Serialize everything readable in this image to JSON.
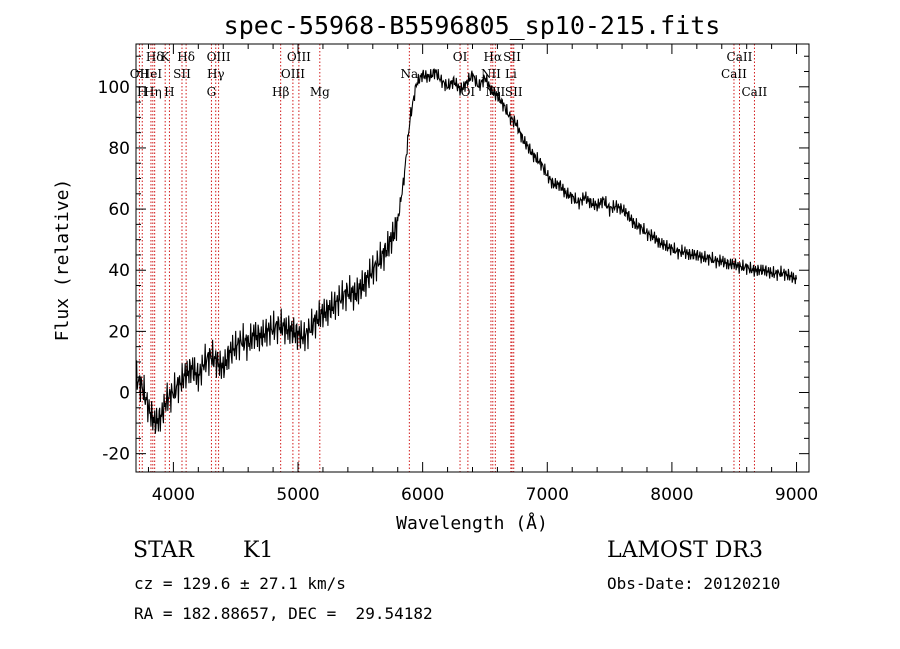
{
  "chart_data": {
    "type": "line",
    "title": "spec-55968-B5596805_sp10-215.fits",
    "xlabel": "Wavelength (Å)",
    "ylabel": "Flux (relative)",
    "xlim": [
      3700,
      9100
    ],
    "ylim": [
      -26,
      114
    ],
    "grid": false,
    "x_ticks": [
      4000,
      5000,
      6000,
      7000,
      8000,
      9000
    ],
    "y_ticks": [
      -20,
      0,
      20,
      40,
      60,
      80,
      100
    ],
    "series": [
      {
        "name": "spectrum",
        "x": [
          3700,
          3750,
          3800,
          3850,
          3900,
          3950,
          4000,
          4050,
          4100,
          4150,
          4200,
          4250,
          4300,
          4350,
          4400,
          4450,
          4500,
          4550,
          4600,
          4650,
          4700,
          4750,
          4800,
          4850,
          4900,
          4950,
          5000,
          5050,
          5100,
          5150,
          5200,
          5250,
          5300,
          5350,
          5400,
          5450,
          5500,
          5550,
          5600,
          5650,
          5700,
          5750,
          5800,
          5850,
          5900,
          5950,
          6000,
          6050,
          6100,
          6150,
          6200,
          6250,
          6300,
          6350,
          6400,
          6450,
          6500,
          6550,
          6600,
          6650,
          6700,
          6750,
          6800,
          6850,
          6900,
          6950,
          7000,
          7050,
          7100,
          7150,
          7200,
          7250,
          7300,
          7350,
          7400,
          7450,
          7500,
          7550,
          7600,
          7650,
          7700,
          7750,
          7800,
          7850,
          7900,
          7950,
          8000,
          8050,
          8100,
          8150,
          8200,
          8250,
          8300,
          8350,
          8400,
          8450,
          8500,
          8550,
          8600,
          8650,
          8700,
          8750,
          8800,
          8850,
          8900,
          8950,
          9000
        ],
        "values": [
          5,
          2,
          -5,
          -10,
          -8,
          -2,
          0,
          3,
          6,
          8,
          5,
          10,
          12,
          10,
          8,
          13,
          15,
          17,
          16,
          19,
          18,
          20,
          21,
          22,
          21,
          20,
          19,
          18,
          21,
          24,
          26,
          27,
          29,
          31,
          33,
          32,
          34,
          37,
          40,
          43,
          46,
          50,
          56,
          70,
          90,
          101,
          104,
          103,
          105,
          102,
          100,
          102,
          99,
          101,
          104,
          100,
          103,
          99,
          97,
          94,
          90,
          88,
          83,
          80,
          77,
          75,
          71,
          68,
          68,
          65,
          64,
          62,
          64,
          62,
          61,
          63,
          60,
          61,
          60,
          58,
          55,
          54,
          52,
          51,
          49,
          48,
          47,
          46,
          46,
          45,
          45,
          44,
          44,
          43,
          43,
          42,
          42,
          41,
          41,
          40,
          40,
          40,
          39,
          39,
          39,
          38,
          37
        ]
      }
    ],
    "spectral_lines": [
      {
        "label": "Hδ",
        "row": 1,
        "x": 3850
      },
      {
        "label": "K",
        "row": 1,
        "x": 3934
      },
      {
        "label": "Hδ",
        "row": 1,
        "x": 4102
      },
      {
        "label": "OIII",
        "row": 1,
        "x": 4363
      },
      {
        "label": "OIII",
        "row": 1,
        "x": 5007
      },
      {
        "label": "OI",
        "row": 1,
        "x": 6300
      },
      {
        "label": "Hα",
        "row": 1,
        "x": 6563
      },
      {
        "label": "SII",
        "row": 1,
        "x": 6717
      },
      {
        "label": "CaII",
        "row": 1,
        "x": 8542
      },
      {
        "label": "OII",
        "row": 2,
        "x": 3727
      },
      {
        "label": "HeI",
        "row": 2,
        "x": 3820
      },
      {
        "label": "SII",
        "row": 2,
        "x": 4069
      },
      {
        "label": "Hγ",
        "row": 2,
        "x": 4340
      },
      {
        "label": "OIII",
        "row": 2,
        "x": 4959
      },
      {
        "label": "Na",
        "row": 2,
        "x": 5893
      },
      {
        "label": "NII",
        "row": 2,
        "x": 6548
      },
      {
        "label": "Li",
        "row": 2,
        "x": 6708
      },
      {
        "label": "CaII",
        "row": 2,
        "x": 8498
      },
      {
        "label": "H",
        "row": 3,
        "x": 3750
      },
      {
        "label": "Hη",
        "row": 3,
        "x": 3835
      },
      {
        "label": "H",
        "row": 3,
        "x": 3968
      },
      {
        "label": "G",
        "row": 3,
        "x": 4305
      },
      {
        "label": "Hβ",
        "row": 3,
        "x": 4861
      },
      {
        "label": "Mg",
        "row": 3,
        "x": 5175
      },
      {
        "label": "OI",
        "row": 3,
        "x": 6363
      },
      {
        "label": "NII",
        "row": 3,
        "x": 6583
      },
      {
        "label": "SII",
        "row": 3,
        "x": 6731
      },
      {
        "label": "CaII",
        "row": 3,
        "x": 8662
      }
    ]
  },
  "info": {
    "object_class": "STAR",
    "subclass": "K1",
    "survey": "LAMOST DR3",
    "redshift": "cz = 129.6 ± 27.1 km/s",
    "obs_date": "Obs-Date: 20120210",
    "coords": "RA = 182.88657, DEC =  29.54182"
  }
}
